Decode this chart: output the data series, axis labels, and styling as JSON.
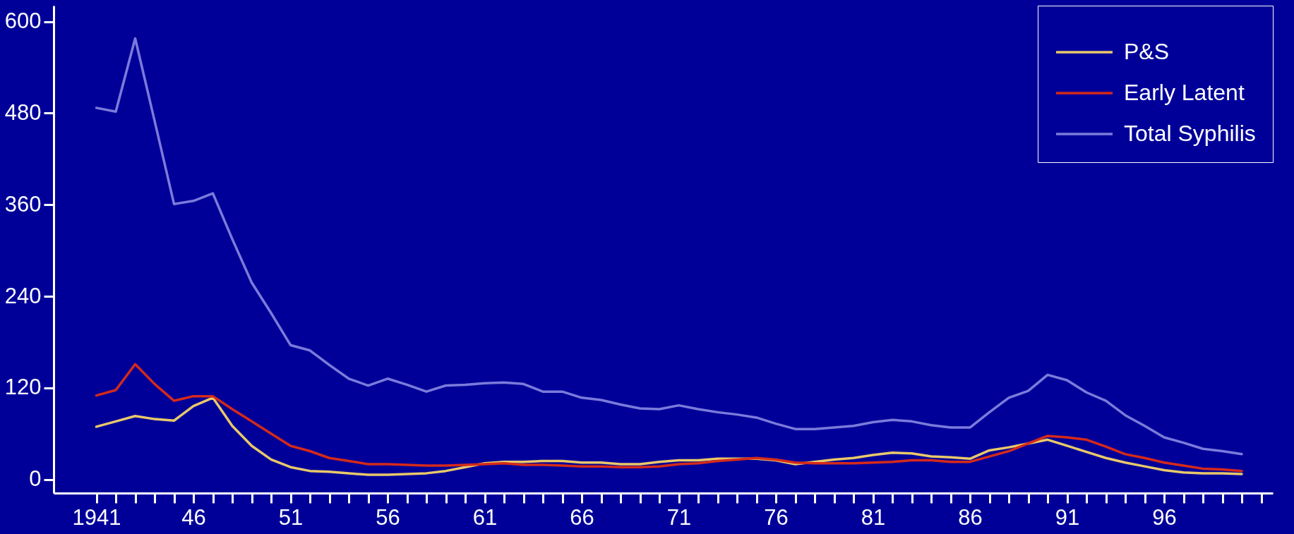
{
  "chart_data": {
    "type": "line",
    "x": [
      1941,
      1942,
      1943,
      1944,
      1945,
      1946,
      1947,
      1948,
      1949,
      1950,
      1951,
      1952,
      1953,
      1954,
      1955,
      1956,
      1957,
      1958,
      1959,
      1960,
      1961,
      1962,
      1963,
      1964,
      1965,
      1966,
      1967,
      1968,
      1969,
      1970,
      1971,
      1972,
      1973,
      1974,
      1975,
      1976,
      1977,
      1978,
      1979,
      1980,
      1981,
      1982,
      1983,
      1984,
      1985,
      1986,
      1987,
      1988,
      1989,
      1990,
      1991,
      1992,
      1993,
      1994,
      1995,
      1996,
      1997,
      1998,
      1999,
      2000
    ],
    "series": [
      {
        "name": "P&S",
        "color": "#e8c86a",
        "values": [
          69,
          76,
          83,
          79,
          77,
          96,
          107,
          70,
          44,
          26,
          16,
          11,
          10,
          8,
          6,
          6,
          7,
          8,
          11,
          16,
          21,
          23,
          23,
          24,
          24,
          22,
          22,
          20,
          20,
          23,
          25,
          25,
          27,
          27,
          27,
          25,
          20,
          23,
          26,
          28,
          32,
          35,
          34,
          30,
          29,
          27,
          38,
          42,
          47,
          52,
          44,
          36,
          28,
          22,
          17,
          12,
          9,
          8,
          8,
          7
        ]
      },
      {
        "name": "Early Latent",
        "color": "#d42a1a",
        "values": [
          110,
          117,
          151,
          125,
          103,
          109,
          109,
          92,
          76,
          60,
          44,
          37,
          28,
          24,
          20,
          20,
          19,
          18,
          18,
          19,
          20,
          21,
          19,
          19,
          18,
          17,
          17,
          16,
          16,
          17,
          20,
          21,
          24,
          26,
          28,
          26,
          22,
          21,
          21,
          21,
          22,
          23,
          25,
          25,
          23,
          23,
          30,
          37,
          47,
          57,
          55,
          52,
          43,
          33,
          28,
          22,
          18,
          14,
          13,
          11
        ]
      },
      {
        "name": "Total Syphilis",
        "color": "#7b7bdb",
        "values": [
          487,
          482,
          578,
          470,
          361,
          365,
          375,
          315,
          258,
          218,
          176,
          169,
          150,
          132,
          123,
          132,
          124,
          115,
          123,
          124,
          126,
          127,
          125,
          115,
          115,
          107,
          104,
          98,
          93,
          92,
          97,
          92,
          88,
          85,
          81,
          73,
          66,
          66,
          68,
          70,
          75,
          78,
          76,
          71,
          68,
          68,
          88,
          107,
          116,
          137,
          130,
          114,
          103,
          84,
          70,
          55,
          48,
          40,
          37,
          33
        ]
      }
    ],
    "xlim": [
      1938.8,
      2001.6
    ],
    "ylim": [
      -18,
      621
    ],
    "xticks": [
      {
        "value": 1941,
        "label": "1941"
      },
      {
        "value": 1942,
        "label": null
      },
      {
        "value": 1943,
        "label": null
      },
      {
        "value": 1944,
        "label": null
      },
      {
        "value": 1945,
        "label": null
      },
      {
        "value": 1946,
        "label": "46"
      },
      {
        "value": 1947,
        "label": null
      },
      {
        "value": 1948,
        "label": null
      },
      {
        "value": 1949,
        "label": null
      },
      {
        "value": 1950,
        "label": null
      },
      {
        "value": 1951,
        "label": "51"
      },
      {
        "value": 1952,
        "label": null
      },
      {
        "value": 1953,
        "label": null
      },
      {
        "value": 1954,
        "label": null
      },
      {
        "value": 1955,
        "label": null
      },
      {
        "value": 1956,
        "label": "56"
      },
      {
        "value": 1957,
        "label": null
      },
      {
        "value": 1958,
        "label": null
      },
      {
        "value": 1959,
        "label": null
      },
      {
        "value": 1960,
        "label": null
      },
      {
        "value": 1961,
        "label": "61"
      },
      {
        "value": 1962,
        "label": null
      },
      {
        "value": 1963,
        "label": null
      },
      {
        "value": 1964,
        "label": null
      },
      {
        "value": 1965,
        "label": null
      },
      {
        "value": 1966,
        "label": "66"
      },
      {
        "value": 1967,
        "label": null
      },
      {
        "value": 1968,
        "label": null
      },
      {
        "value": 1969,
        "label": null
      },
      {
        "value": 1970,
        "label": null
      },
      {
        "value": 1971,
        "label": "71"
      },
      {
        "value": 1972,
        "label": null
      },
      {
        "value": 1973,
        "label": null
      },
      {
        "value": 1974,
        "label": null
      },
      {
        "value": 1975,
        "label": null
      },
      {
        "value": 1976,
        "label": "76"
      },
      {
        "value": 1977,
        "label": null
      },
      {
        "value": 1978,
        "label": null
      },
      {
        "value": 1979,
        "label": null
      },
      {
        "value": 1980,
        "label": null
      },
      {
        "value": 1981,
        "label": "81"
      },
      {
        "value": 1982,
        "label": null
      },
      {
        "value": 1983,
        "label": null
      },
      {
        "value": 1984,
        "label": null
      },
      {
        "value": 1985,
        "label": null
      },
      {
        "value": 1986,
        "label": "86"
      },
      {
        "value": 1987,
        "label": null
      },
      {
        "value": 1988,
        "label": null
      },
      {
        "value": 1989,
        "label": null
      },
      {
        "value": 1990,
        "label": null
      },
      {
        "value": 1991,
        "label": "91"
      },
      {
        "value": 1992,
        "label": null
      },
      {
        "value": 1993,
        "label": null
      },
      {
        "value": 1994,
        "label": null
      },
      {
        "value": 1995,
        "label": null
      },
      {
        "value": 1996,
        "label": "96"
      },
      {
        "value": 1997,
        "label": null
      },
      {
        "value": 1998,
        "label": null
      },
      {
        "value": 1999,
        "label": null
      },
      {
        "value": 2000,
        "label": null
      },
      {
        "value": 2001,
        "label": null
      }
    ],
    "yticks": [
      0,
      120,
      240,
      360,
      480,
      600
    ],
    "grid": false,
    "legend": "top right",
    "marker": "none",
    "line_style": "solid"
  }
}
